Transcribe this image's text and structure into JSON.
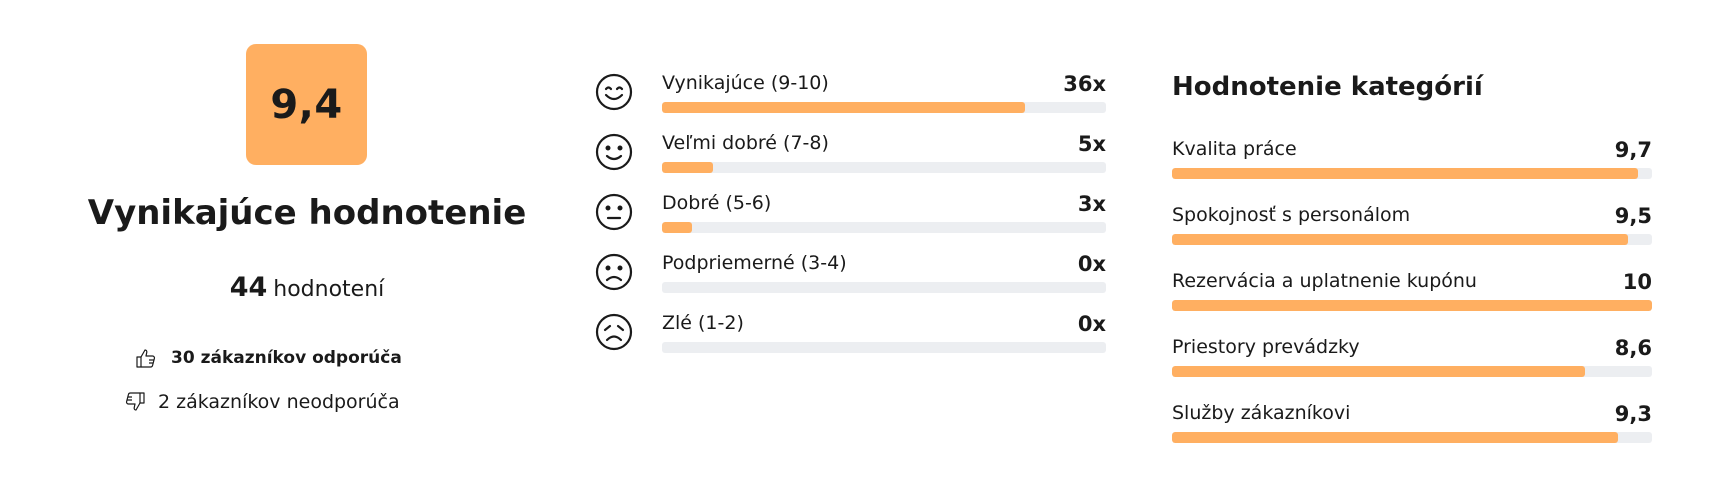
{
  "summary": {
    "score": "9,4",
    "verdict": "Vynikajúce hodnotenie",
    "count_number": "44",
    "count_label": "hodnotení",
    "recommend": "30 zákazníkov odporúča",
    "not_recommend": "2 zákazníkov neodporúča",
    "accent_color": "#ffaf61"
  },
  "distribution": [
    {
      "label": "Vynikajúce (9-10)",
      "value": "36x",
      "fraction": 0.818,
      "icon": "grin-face-icon"
    },
    {
      "label": "Veľmi dobré (7-8)",
      "value": "5x",
      "fraction": 0.114,
      "icon": "smile-face-icon"
    },
    {
      "label": "Dobré (5-6)",
      "value": "3x",
      "fraction": 0.068,
      "icon": "neutral-face-icon"
    },
    {
      "label": "Podpriemerné (3-4)",
      "value": "0x",
      "fraction": 0,
      "icon": "sad-face-icon"
    },
    {
      "label": "Zlé (1-2)",
      "value": "0x",
      "fraction": 0,
      "icon": "worried-face-icon"
    }
  ],
  "categories": {
    "title": "Hodnotenie kategórií",
    "items": [
      {
        "label": "Kvalita práce",
        "value": "9,7",
        "fraction": 0.97
      },
      {
        "label": "Spokojnosť s personálom",
        "value": "9,5",
        "fraction": 0.95
      },
      {
        "label": "Rezervácia a uplatnenie kupónu",
        "value": "10",
        "fraction": 1.0
      },
      {
        "label": "Priestory prevádzky",
        "value": "8,6",
        "fraction": 0.86
      },
      {
        "label": "Služby zákazníkovi",
        "value": "9,3",
        "fraction": 0.93
      }
    ]
  }
}
